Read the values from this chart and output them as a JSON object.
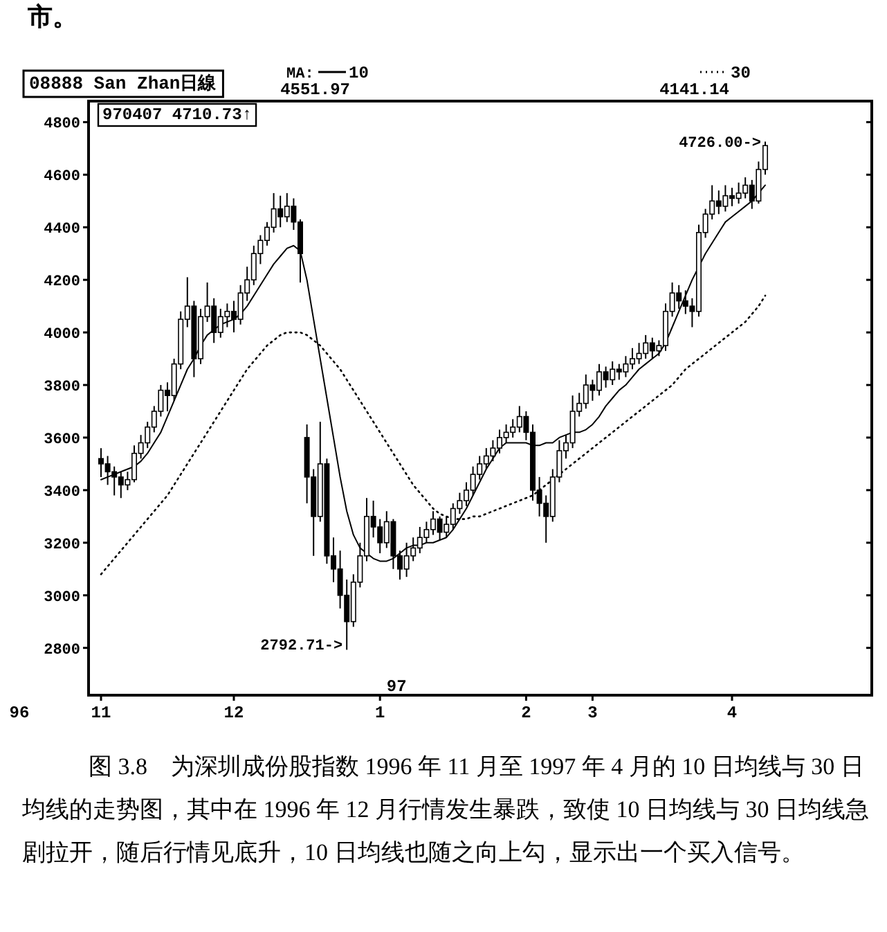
{
  "chart_data": {
    "type": "candlestick",
    "title": "08888  San Zhan日線",
    "subtitle": "970407   4710.73↑",
    "categories": [
      "11",
      null,
      null,
      null,
      null,
      null,
      null,
      null,
      null,
      null,
      null,
      null,
      null,
      null,
      null,
      null,
      null,
      null,
      null,
      null,
      "12",
      null,
      null,
      null,
      null,
      null,
      null,
      null,
      null,
      null,
      null,
      null,
      null,
      null,
      null,
      null,
      null,
      null,
      null,
      null,
      null,
      null,
      "1",
      null,
      null,
      null,
      null,
      null,
      null,
      null,
      null,
      null,
      null,
      null,
      null,
      null,
      null,
      null,
      null,
      null,
      null,
      null,
      null,
      null,
      "2",
      null,
      null,
      null,
      null,
      null,
      null,
      null,
      null,
      null,
      "3",
      null,
      null,
      null,
      null,
      null,
      null,
      null,
      null,
      null,
      null,
      null,
      null,
      null,
      null,
      null,
      null,
      null,
      null,
      null,
      null,
      "4",
      null,
      null,
      null,
      null,
      null
    ],
    "ohlc": [
      [
        3520,
        3560,
        3450,
        3500
      ],
      [
        3500,
        3530,
        3420,
        3470
      ],
      [
        3470,
        3490,
        3380,
        3450
      ],
      [
        3450,
        3470,
        3370,
        3420
      ],
      [
        3420,
        3470,
        3400,
        3440
      ],
      [
        3440,
        3570,
        3430,
        3540
      ],
      [
        3540,
        3610,
        3520,
        3580
      ],
      [
        3580,
        3660,
        3560,
        3640
      ],
      [
        3640,
        3720,
        3620,
        3700
      ],
      [
        3700,
        3800,
        3680,
        3780
      ],
      [
        3780,
        3810,
        3700,
        3760
      ],
      [
        3760,
        3900,
        3740,
        3880
      ],
      [
        3880,
        4080,
        3860,
        4050
      ],
      [
        4050,
        4210,
        4020,
        4100
      ],
      [
        4100,
        4120,
        3830,
        3900
      ],
      [
        3900,
        4090,
        3880,
        4060
      ],
      [
        4060,
        4190,
        4040,
        4100
      ],
      [
        4100,
        4130,
        3960,
        4000
      ],
      [
        4000,
        4090,
        3980,
        4060
      ],
      [
        4060,
        4110,
        4020,
        4080
      ],
      [
        4080,
        4120,
        4000,
        4050
      ],
      [
        4050,
        4180,
        4030,
        4150
      ],
      [
        4150,
        4250,
        4120,
        4200
      ],
      [
        4200,
        4330,
        4180,
        4300
      ],
      [
        4300,
        4370,
        4260,
        4350
      ],
      [
        4350,
        4420,
        4330,
        4400
      ],
      [
        4400,
        4530,
        4380,
        4470
      ],
      [
        4470,
        4520,
        4400,
        4440
      ],
      [
        4440,
        4530,
        4420,
        4480
      ],
      [
        4480,
        4510,
        4390,
        4420
      ],
      [
        4420,
        4430,
        4190,
        4300
      ],
      [
        3600,
        3650,
        3350,
        3450
      ],
      [
        3450,
        3480,
        3150,
        3300
      ],
      [
        3300,
        3660,
        3280,
        3500
      ],
      [
        3500,
        3520,
        3120,
        3150
      ],
      [
        3150,
        3220,
        3050,
        3100
      ],
      [
        3100,
        3170,
        2950,
        3000
      ],
      [
        3000,
        3060,
        2792.71,
        2900
      ],
      [
        2900,
        3080,
        2880,
        3050
      ],
      [
        3050,
        3200,
        3030,
        3150
      ],
      [
        3150,
        3370,
        3130,
        3300
      ],
      [
        3300,
        3360,
        3220,
        3260
      ],
      [
        3260,
        3290,
        3160,
        3200
      ],
      [
        3200,
        3320,
        3180,
        3280
      ],
      [
        3280,
        3290,
        3100,
        3150
      ],
      [
        3150,
        3170,
        3060,
        3100
      ],
      [
        3100,
        3200,
        3070,
        3150
      ],
      [
        3150,
        3220,
        3130,
        3180
      ],
      [
        3180,
        3260,
        3160,
        3220
      ],
      [
        3220,
        3280,
        3200,
        3250
      ],
      [
        3250,
        3320,
        3230,
        3290
      ],
      [
        3290,
        3300,
        3210,
        3240
      ],
      [
        3240,
        3300,
        3220,
        3270
      ],
      [
        3270,
        3350,
        3250,
        3330
      ],
      [
        3330,
        3390,
        3310,
        3360
      ],
      [
        3360,
        3430,
        3340,
        3400
      ],
      [
        3400,
        3490,
        3380,
        3460
      ],
      [
        3460,
        3530,
        3440,
        3500
      ],
      [
        3500,
        3560,
        3480,
        3530
      ],
      [
        3530,
        3590,
        3510,
        3560
      ],
      [
        3560,
        3630,
        3540,
        3600
      ],
      [
        3600,
        3650,
        3580,
        3620
      ],
      [
        3620,
        3670,
        3600,
        3640
      ],
      [
        3640,
        3720,
        3620,
        3680
      ],
      [
        3680,
        3700,
        3590,
        3620
      ],
      [
        3620,
        3650,
        3360,
        3400
      ],
      [
        3400,
        3450,
        3300,
        3350
      ],
      [
        3350,
        3380,
        3200,
        3300
      ],
      [
        3300,
        3480,
        3280,
        3450
      ],
      [
        3450,
        3590,
        3430,
        3550
      ],
      [
        3550,
        3610,
        3520,
        3580
      ],
      [
        3580,
        3760,
        3560,
        3700
      ],
      [
        3700,
        3770,
        3680,
        3730
      ],
      [
        3730,
        3840,
        3710,
        3800
      ],
      [
        3800,
        3820,
        3740,
        3780
      ],
      [
        3780,
        3880,
        3760,
        3850
      ],
      [
        3850,
        3870,
        3790,
        3820
      ],
      [
        3820,
        3890,
        3800,
        3860
      ],
      [
        3860,
        3880,
        3820,
        3850
      ],
      [
        3850,
        3910,
        3830,
        3880
      ],
      [
        3880,
        3940,
        3860,
        3900
      ],
      [
        3900,
        3960,
        3880,
        3920
      ],
      [
        3920,
        3990,
        3900,
        3960
      ],
      [
        3960,
        3980,
        3900,
        3930
      ],
      [
        3930,
        3970,
        3910,
        3950
      ],
      [
        3950,
        4110,
        3930,
        4080
      ],
      [
        4080,
        4190,
        4060,
        4150
      ],
      [
        4150,
        4180,
        4090,
        4120
      ],
      [
        4120,
        4160,
        4070,
        4100
      ],
      [
        4100,
        4130,
        4020,
        4080
      ],
      [
        4080,
        4410,
        4060,
        4380
      ],
      [
        4380,
        4470,
        4360,
        4450
      ],
      [
        4450,
        4560,
        4430,
        4500
      ],
      [
        4500,
        4540,
        4450,
        4480
      ],
      [
        4480,
        4560,
        4460,
        4520
      ],
      [
        4520,
        4550,
        4480,
        4510
      ],
      [
        4510,
        4570,
        4490,
        4530
      ],
      [
        4530,
        4590,
        4510,
        4560
      ],
      [
        4560,
        4580,
        4470,
        4500
      ],
      [
        4500,
        4650,
        4490,
        4620
      ],
      [
        4620,
        4726,
        4600,
        4710.73
      ]
    ],
    "series": [
      {
        "name": "10",
        "type": "line",
        "color": "#000000",
        "line_style": "solid",
        "values": [
          3440,
          3450,
          3460,
          3470,
          3480,
          3490,
          3510,
          3540,
          3580,
          3620,
          3680,
          3740,
          3800,
          3860,
          3900,
          3950,
          3990,
          4010,
          4030,
          4040,
          4050,
          4070,
          4100,
          4140,
          4180,
          4220,
          4260,
          4290,
          4320,
          4330,
          4310,
          4200,
          4050,
          3900,
          3750,
          3600,
          3450,
          3320,
          3230,
          3180,
          3160,
          3140,
          3130,
          3130,
          3140,
          3160,
          3180,
          3190,
          3190,
          3200,
          3200,
          3210,
          3220,
          3250,
          3290,
          3330,
          3380,
          3430,
          3480,
          3520,
          3560,
          3580,
          3580,
          3580,
          3580,
          3570,
          3570,
          3580,
          3580,
          3600,
          3610,
          3620,
          3620,
          3630,
          3650,
          3680,
          3720,
          3750,
          3780,
          3800,
          3830,
          3860,
          3880,
          3900,
          3920,
          3960,
          4020,
          4080,
          4140,
          4200,
          4250,
          4300,
          4340,
          4380,
          4420,
          4440,
          4460,
          4480,
          4500,
          4530,
          4560
        ]
      },
      {
        "name": "30",
        "type": "line",
        "color": "#000000",
        "line_style": "dotted",
        "values": [
          3080,
          3110,
          3140,
          3170,
          3200,
          3230,
          3260,
          3290,
          3320,
          3350,
          3380,
          3420,
          3460,
          3500,
          3540,
          3580,
          3620,
          3660,
          3700,
          3740,
          3780,
          3820,
          3860,
          3890,
          3920,
          3950,
          3970,
          3990,
          4000,
          4000,
          4000,
          3990,
          3970,
          3950,
          3920,
          3890,
          3860,
          3820,
          3780,
          3740,
          3700,
          3660,
          3620,
          3580,
          3540,
          3500,
          3460,
          3420,
          3390,
          3360,
          3330,
          3310,
          3300,
          3290,
          3290,
          3290,
          3300,
          3300,
          3310,
          3320,
          3330,
          3340,
          3350,
          3360,
          3370,
          3380,
          3400,
          3420,
          3440,
          3460,
          3480,
          3500,
          3520,
          3540,
          3560,
          3580,
          3600,
          3620,
          3640,
          3660,
          3680,
          3700,
          3720,
          3740,
          3760,
          3780,
          3800,
          3830,
          3860,
          3880,
          3900,
          3920,
          3940,
          3960,
          3980,
          4000,
          4020,
          4040,
          4070,
          4100,
          4140
        ]
      }
    ],
    "ylim": [
      2620,
      4880
    ],
    "yticks": [
      2800,
      3000,
      3200,
      3400,
      3600,
      3800,
      4000,
      4200,
      4400,
      4600,
      4800
    ],
    "legend": "top",
    "grid": false,
    "annotations": [
      "市。",
      "MA:",
      "4551.97",
      "4141.14",
      "4726.00->",
      "2792.71->",
      "96",
      "97",
      "图 3.8　为深圳成份股指数 1996 年 11 月至 1997 年 4 月的 10 日均线与 30 日均线的走势图，其中在 1996 年 12 月行情发生暴跌，致使 10 日均线与 30 日均线急剧拉开，随后行情见底升，10 日均线也随之向上勾，显示出一个买入信号。"
    ]
  }
}
